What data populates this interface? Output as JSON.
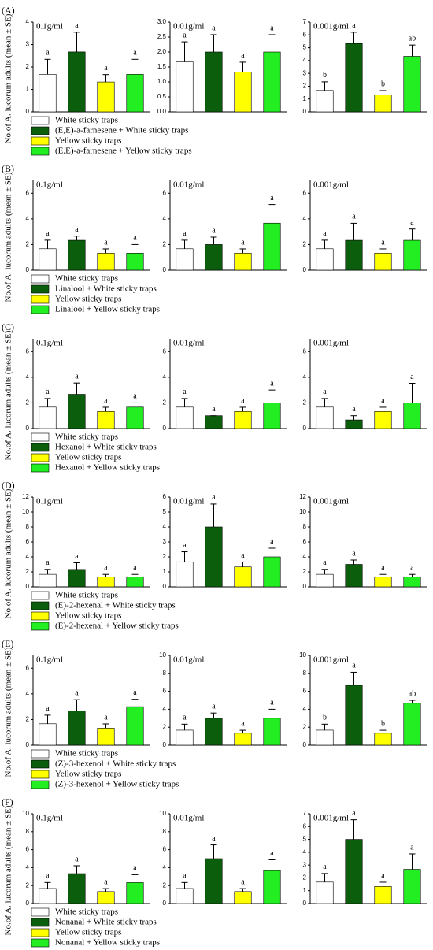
{
  "chart_data": [
    {
      "type": "bar",
      "panel": "(A)",
      "ylabel": "No.of A. lucorum adults (mean ± SE)",
      "legend": [
        {
          "name": "White sticky traps",
          "color": "#ffffff"
        },
        {
          "name": "(E,E)-a-farnesene + White sticky traps",
          "color": "#0b5e0b"
        },
        {
          "name": "Yellow sticky traps",
          "color": "#ffff00"
        },
        {
          "name": "(E,E)-a-farnesene + Yellow sticky traps",
          "color": "#22ee22"
        }
      ],
      "subplots": [
        {
          "title": "0.1g/ml",
          "values": [
            1.67,
            2.67,
            1.33,
            1.67
          ],
          "errors": [
            0.67,
            0.88,
            0.33,
            0.67
          ],
          "letters": [
            "a",
            "a",
            "a",
            "a"
          ],
          "ylim": [
            0,
            4
          ],
          "yticks": [
            0,
            1,
            2,
            3,
            4
          ]
        },
        {
          "title": "0.01g/ml",
          "values": [
            1.67,
            2.0,
            1.33,
            2.0
          ],
          "errors": [
            0.67,
            0.58,
            0.33,
            0.58
          ],
          "letters": [
            "a",
            "a",
            "a",
            "a"
          ],
          "ylim": [
            0,
            3
          ],
          "yticks": [
            {
              "value": 0,
              "label": "0.0"
            },
            0.5,
            {
              "value": 1,
              "label": "1.0"
            },
            1.5,
            {
              "value": 2,
              "label": "2.0"
            },
            2.5,
            {
              "value": 3,
              "label": "3.0"
            }
          ]
        },
        {
          "title": "0.001g/ml",
          "values": [
            1.67,
            5.33,
            1.33,
            4.33
          ],
          "errors": [
            0.67,
            0.88,
            0.33,
            0.88
          ],
          "letters": [
            "b",
            "a",
            "b",
            "ab"
          ],
          "ylim": [
            0,
            7
          ],
          "yticks": [
            0,
            1,
            2,
            3,
            4,
            5,
            6,
            7
          ]
        }
      ]
    },
    {
      "type": "bar",
      "panel": "(B)",
      "ylabel": "No.of A. lucorum adults (mean ± SE)",
      "legend": [
        {
          "name": "White sticky traps",
          "color": "#ffffff"
        },
        {
          "name": "Linalool + White sticky traps",
          "color": "#0b5e0b"
        },
        {
          "name": "Yellow sticky traps",
          "color": "#ffff00"
        },
        {
          "name": "Linalool + Yellow sticky traps",
          "color": "#22ee22"
        }
      ],
      "subplots": [
        {
          "title": "0.1g/ml",
          "values": [
            1.67,
            2.33,
            1.33,
            1.33
          ],
          "errors": [
            0.67,
            0.33,
            0.33,
            0.67
          ],
          "letters": [
            "a",
            "a",
            "a",
            "a"
          ],
          "ylim": [
            0,
            7
          ],
          "yticks": [
            0,
            2,
            4,
            6
          ]
        },
        {
          "title": "0.01g/ml",
          "values": [
            1.67,
            2.0,
            1.33,
            3.67
          ],
          "errors": [
            0.67,
            0.58,
            0.33,
            1.45
          ],
          "letters": [
            "a",
            "a",
            "a",
            "a"
          ],
          "ylim": [
            0,
            7
          ],
          "yticks": [
            0,
            2,
            4,
            6
          ]
        },
        {
          "title": "0.001g/ml",
          "values": [
            1.67,
            2.33,
            1.33,
            2.33
          ],
          "errors": [
            0.67,
            1.33,
            0.33,
            0.88
          ],
          "letters": [
            "a",
            "a",
            "a",
            "a"
          ],
          "ylim": [
            0,
            7
          ],
          "yticks": [
            0,
            2,
            4,
            6
          ]
        }
      ]
    },
    {
      "type": "bar",
      "panel": "(C)",
      "ylabel": "No.of A. lucorum adults (mean ± SE)",
      "legend": [
        {
          "name": "White sticky traps",
          "color": "#ffffff"
        },
        {
          "name": "Hexanol + White sticky traps",
          "color": "#0b5e0b"
        },
        {
          "name": "Yellow sticky traps",
          "color": "#ffff00"
        },
        {
          "name": "Hexanol + Yellow sticky traps",
          "color": "#22ee22"
        }
      ],
      "subplots": [
        {
          "title": "0.1g/ml",
          "values": [
            1.67,
            2.67,
            1.33,
            1.67
          ],
          "errors": [
            0.67,
            0.88,
            0.33,
            0.33
          ],
          "letters": [
            "a",
            "a",
            "a",
            "a"
          ],
          "ylim": [
            0,
            7
          ],
          "yticks": [
            0,
            2,
            4,
            6
          ]
        },
        {
          "title": "0.01g/ml",
          "values": [
            1.67,
            1.0,
            1.33,
            2.0
          ],
          "errors": [
            0.67,
            0,
            0.33,
            1.0
          ],
          "letters": [
            "a",
            "a",
            "a",
            "a"
          ],
          "ylim": [
            0,
            7
          ],
          "yticks": [
            0,
            2,
            4,
            6
          ]
        },
        {
          "title": "0.001g/ml",
          "values": [
            1.67,
            0.67,
            1.33,
            2.0
          ],
          "errors": [
            0.67,
            0.33,
            0.33,
            1.53
          ],
          "letters": [
            "a",
            "a",
            "a",
            "a"
          ],
          "ylim": [
            0,
            7
          ],
          "yticks": [
            0,
            2,
            4,
            6
          ]
        }
      ]
    },
    {
      "type": "bar",
      "panel": "(D)",
      "ylabel": "No.of A. lucorum adults (mean ± SE)",
      "legend": [
        {
          "name": "White sticky traps",
          "color": "#ffffff"
        },
        {
          "name": "(E)-2-hexenal + White sticky traps",
          "color": "#0b5e0b"
        },
        {
          "name": "Yellow sticky traps",
          "color": "#ffff00"
        },
        {
          "name": "(E)-2-hexenal + Yellow sticky traps",
          "color": "#22ee22"
        }
      ],
      "subplots": [
        {
          "title": "0.1g/ml",
          "values": [
            1.67,
            2.33,
            1.33,
            1.33
          ],
          "errors": [
            0.67,
            0.88,
            0.33,
            0.33
          ],
          "letters": [
            "a",
            "a",
            "a",
            "a"
          ],
          "ylim": [
            0,
            12
          ],
          "yticks": [
            0,
            2,
            4,
            6,
            8,
            10,
            12
          ]
        },
        {
          "title": "0.01g/ml",
          "values": [
            1.67,
            4.0,
            1.33,
            2.0
          ],
          "errors": [
            0.67,
            1.53,
            0.33,
            0.58
          ],
          "letters": [
            "a",
            "a",
            "a",
            "a"
          ],
          "ylim": [
            0,
            6
          ],
          "yticks": [
            0,
            1,
            2,
            3,
            4,
            5,
            6
          ]
        },
        {
          "title": "0.001g/ml",
          "values": [
            1.67,
            3.0,
            1.33,
            1.33
          ],
          "errors": [
            0.67,
            0.58,
            0.33,
            0.33
          ],
          "letters": [
            "a",
            "a",
            "a",
            "a"
          ],
          "ylim": [
            0,
            12
          ],
          "yticks": [
            0,
            2,
            4,
            6,
            8,
            10,
            12
          ]
        }
      ]
    },
    {
      "type": "bar",
      "panel": "(E)",
      "ylabel": "No.of A. lucorum adults (mean ± SE)",
      "legend": [
        {
          "name": "White sticky traps",
          "color": "#ffffff"
        },
        {
          "name": "(Z)-3-hexenol + White sticky traps",
          "color": "#0b5e0b"
        },
        {
          "name": "Yellow sticky traps",
          "color": "#ffff00"
        },
        {
          "name": "(Z)-3-hexenol + Yellow sticky traps",
          "color": "#22ee22"
        }
      ],
      "subplots": [
        {
          "title": "0.1g/ml",
          "values": [
            1.67,
            2.67,
            1.33,
            3.0
          ],
          "errors": [
            0.67,
            0.88,
            0.33,
            0.58
          ],
          "letters": [
            "a",
            "a",
            "a",
            "a"
          ],
          "ylim": [
            0,
            7
          ],
          "yticks": [
            0,
            2,
            4,
            6
          ]
        },
        {
          "title": "0.01g/ml",
          "values": [
            1.67,
            3.0,
            1.33,
            3.0
          ],
          "errors": [
            0.67,
            0.58,
            0.33,
            1.0
          ],
          "letters": [
            "a",
            "a",
            "a",
            "a"
          ],
          "ylim": [
            0,
            10
          ],
          "yticks": [
            0,
            2,
            4,
            6,
            8,
            10
          ]
        },
        {
          "title": "0.001g/ml",
          "values": [
            1.67,
            6.67,
            1.33,
            4.67
          ],
          "errors": [
            0.67,
            1.45,
            0.33,
            0.33
          ],
          "letters": [
            "b",
            "a",
            "b",
            "ab"
          ],
          "ylim": [
            0,
            10
          ],
          "yticks": [
            0,
            2,
            4,
            6,
            8,
            10
          ]
        }
      ]
    },
    {
      "type": "bar",
      "panel": "(F)",
      "ylabel": "No.of A. lucorum adults (mean ± SE)",
      "legend": [
        {
          "name": "White sticky traps",
          "color": "#ffffff"
        },
        {
          "name": "Nonanal + White sticky traps",
          "color": "#0b5e0b"
        },
        {
          "name": "Yellow sticky traps",
          "color": "#ffff00"
        },
        {
          "name": "Nonanal + Yellow sticky traps",
          "color": "#22ee22"
        }
      ],
      "subplots": [
        {
          "title": "0.1g/ml",
          "values": [
            1.67,
            3.33,
            1.33,
            2.33
          ],
          "errors": [
            0.67,
            0.88,
            0.33,
            0.88
          ],
          "letters": [
            "a",
            "a",
            "a",
            "a"
          ],
          "ylim": [
            0,
            10
          ],
          "yticks": [
            0,
            2,
            4,
            6,
            8,
            10
          ]
        },
        {
          "title": "0.01g/ml",
          "values": [
            1.67,
            5.0,
            1.33,
            3.67
          ],
          "errors": [
            0.67,
            1.53,
            0.33,
            1.2
          ],
          "letters": [
            "a",
            "a",
            "a",
            "a"
          ],
          "ylim": [
            0,
            10
          ],
          "yticks": [
            0,
            2,
            4,
            6,
            8,
            10
          ]
        },
        {
          "title": "0.001g/ml",
          "values": [
            1.67,
            5.0,
            1.33,
            2.67
          ],
          "errors": [
            0.67,
            1.53,
            0.33,
            1.2
          ],
          "letters": [
            "a",
            "a",
            "a",
            "a"
          ],
          "ylim": [
            0,
            7
          ],
          "yticks": [
            0,
            1,
            2,
            3,
            4,
            5,
            6,
            7
          ]
        }
      ]
    }
  ]
}
